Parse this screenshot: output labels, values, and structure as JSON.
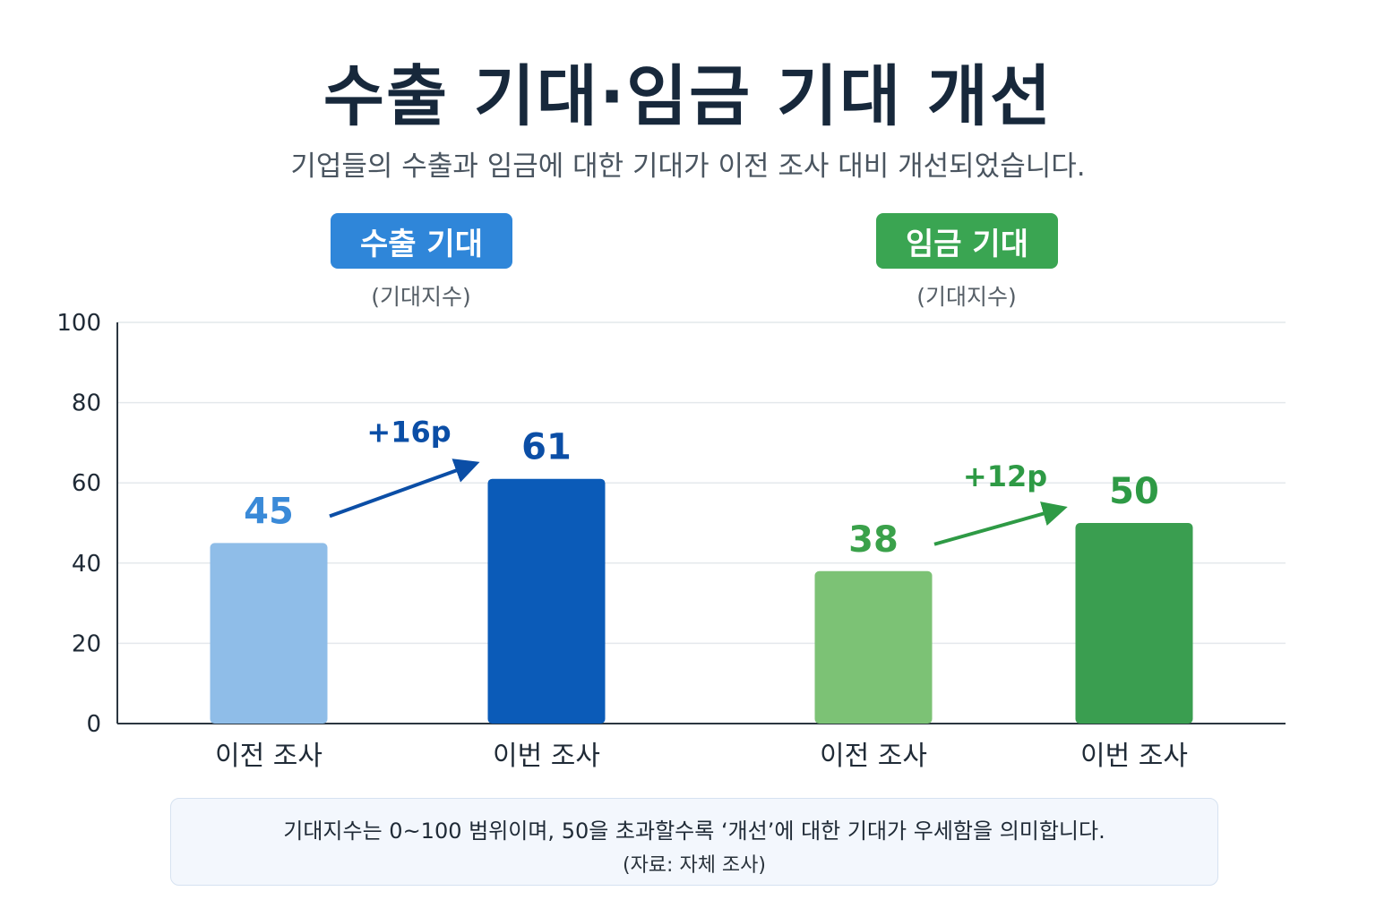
{
  "header": {
    "title": "수출 기대·임금 기대 개선",
    "subtitle": "기업들의 수출과 임금에 대한 기대가 이전 조사 대비 개선되었습니다."
  },
  "groups": [
    {
      "badge": "수출 기대",
      "unit": "(기대지수)",
      "badge_color": "#2f86d9"
    },
    {
      "badge": "임금 기대",
      "unit": "(기대지수)",
      "badge_color": "#3aa552"
    }
  ],
  "chart_data": {
    "type": "bar",
    "ylim": [
      0,
      100
    ],
    "yticks": [
      0,
      20,
      40,
      60,
      80,
      100
    ],
    "grid": true,
    "categories": [
      "이전 조사",
      "이번 조사",
      "이전 조사",
      "이번 조사"
    ],
    "groups": [
      {
        "name": "수출 기대",
        "categories": [
          "이전 조사",
          "이번 조사"
        ],
        "values": [
          45,
          61
        ],
        "change_label": "+16p",
        "colors": [
          "#8fbde8",
          "#0b5bb8"
        ],
        "label_colors": [
          "#3a8ad8",
          "#0b4ea6"
        ]
      },
      {
        "name": "임금 기대",
        "categories": [
          "이전 조사",
          "이번 조사"
        ],
        "values": [
          38,
          50
        ],
        "change_label": "+12p",
        "colors": [
          "#7cc275",
          "#3a9e50"
        ],
        "label_colors": [
          "#3aa14a",
          "#2e9a45"
        ]
      }
    ]
  },
  "footnote": {
    "text": "기대지수는 0~100 범위이며, 50을 초과할수록 ‘개선’에 대한 기대가 우세함을 의미합니다.",
    "source": "(자료: 자체 조사)"
  }
}
